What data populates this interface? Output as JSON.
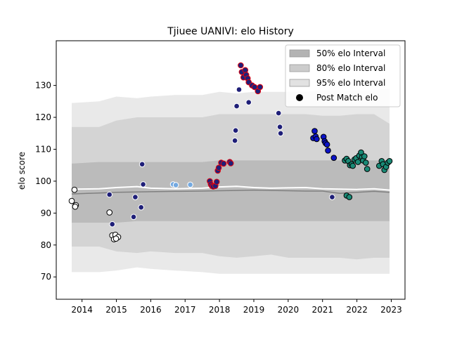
{
  "chart_data": {
    "type": "scatter",
    "title": "Tjiuee UANIVI: elo History",
    "xlabel": "",
    "ylabel": "elo score",
    "xlim": [
      2013.25,
      2023.4
    ],
    "ylim": [
      63.0,
      144.0
    ],
    "x_ticks": [
      2014,
      2015,
      2016,
      2017,
      2018,
      2019,
      2020,
      2021,
      2022,
      2023
    ],
    "y_ticks": [
      70,
      80,
      90,
      100,
      110,
      120,
      130
    ],
    "grid": false,
    "legend_position": "upper right",
    "legend": [
      {
        "label": "50% elo Interval",
        "kind": "band",
        "color": "#b3b3b3"
      },
      {
        "label": "80% elo Interval",
        "kind": "band",
        "color": "#cccccc"
      },
      {
        "label": "95% elo Interval",
        "kind": "band",
        "color": "#e2e2e2"
      },
      {
        "label": "Post Match elo",
        "kind": "marker",
        "color": "#000000"
      }
    ],
    "colors": {
      "band_50": "#b3b3b3",
      "band_80": "#cccccc",
      "band_95": "#e2e2e2",
      "median_line": "#ffffff",
      "mean_line": "#808080",
      "white": "#ffffff",
      "navy": "#1f1f78",
      "red_edge": "#e3000b",
      "light_blue": "#74a9e0",
      "blue": "#0a12c8",
      "teal": "#1a8a76"
    },
    "interval_bands": {
      "x": [
        2013.7,
        2014.5,
        2015.0,
        2015.6,
        2016.0,
        2016.7,
        2017.5,
        2018.0,
        2018.5,
        2019.0,
        2019.5,
        2020.0,
        2020.5,
        2021.0,
        2021.5,
        2022.0,
        2022.5,
        2022.95
      ],
      "p95_low": [
        71.5,
        71.5,
        72.0,
        73.0,
        72.5,
        72.0,
        71.5,
        71.0,
        71.0,
        71.0,
        71.0,
        71.0,
        71.0,
        71.0,
        71.0,
        71.0,
        71.0,
        71.0
      ],
      "p95_high": [
        124.5,
        125.0,
        126.5,
        126.0,
        126.5,
        127.0,
        127.0,
        128.0,
        127.5,
        128.0,
        128.0,
        128.0,
        128.0,
        128.5,
        128.5,
        128.5,
        128.5,
        129.0
      ],
      "p80_low": [
        79.5,
        79.5,
        78.0,
        77.5,
        78.0,
        77.5,
        77.5,
        76.5,
        76.0,
        76.5,
        77.0,
        76.0,
        76.0,
        76.0,
        76.0,
        75.5,
        76.0,
        76.0
      ],
      "p80_high": [
        117.0,
        117.0,
        119.0,
        120.0,
        120.0,
        120.0,
        120.0,
        121.0,
        121.0,
        121.0,
        121.0,
        121.0,
        121.0,
        120.5,
        120.5,
        121.0,
        121.0,
        118.0
      ],
      "p50_low": [
        87.0,
        87.0,
        87.0,
        87.5,
        87.5,
        87.5,
        87.5,
        87.5,
        87.5,
        87.5,
        87.5,
        87.5,
        87.5,
        87.5,
        87.5,
        87.5,
        87.5,
        87.5
      ],
      "p50_high": [
        105.5,
        106.0,
        106.0,
        106.0,
        106.0,
        106.0,
        106.0,
        106.5,
        106.5,
        106.5,
        106.5,
        106.5,
        106.5,
        106.5,
        106.5,
        106.5,
        106.5,
        106.5
      ],
      "median": [
        97.5,
        97.6,
        98.0,
        98.3,
        97.8,
        97.6,
        97.8,
        98.2,
        98.4,
        98.0,
        97.8,
        97.9,
        98.0,
        97.6,
        97.5,
        97.4,
        97.6,
        97.2
      ],
      "mean": [
        96.0,
        96.3,
        96.5,
        96.6,
        96.7,
        96.8,
        96.9,
        97.0,
        97.1,
        97.2,
        97.1,
        97.0,
        96.9,
        96.9,
        96.2,
        96.5,
        96.8,
        96.5
      ]
    },
    "series": [
      {
        "face": "#ffffff",
        "edge": "#000000",
        "points": [
          [
            2013.7,
            93.8
          ],
          [
            2013.78,
            97.3
          ],
          [
            2013.82,
            92.5
          ],
          [
            2013.8,
            92.0
          ],
          [
            2014.8,
            90.2
          ],
          [
            2014.88,
            83.0
          ],
          [
            2014.93,
            81.8
          ],
          [
            2014.97,
            83.2
          ],
          [
            2015.05,
            82.5
          ],
          [
            2014.99,
            82.0
          ]
        ]
      },
      {
        "face": "#1f1f78",
        "edge": "#ffffff",
        "points": [
          [
            2014.8,
            95.8
          ],
          [
            2014.88,
            86.5
          ],
          [
            2015.55,
            95.0
          ],
          [
            2015.5,
            88.8
          ],
          [
            2015.72,
            91.8
          ],
          [
            2015.75,
            105.3
          ],
          [
            2015.78,
            99.0
          ],
          [
            2018.45,
            112.7
          ],
          [
            2018.47,
            115.9
          ],
          [
            2018.5,
            123.5
          ],
          [
            2018.57,
            128.7
          ],
          [
            2018.85,
            124.7
          ],
          [
            2019.72,
            121.3
          ],
          [
            2019.76,
            117.0
          ],
          [
            2019.78,
            115.0
          ],
          [
            2021.28,
            95.0
          ]
        ]
      },
      {
        "face": "#74a9e0",
        "edge": "#ffffff",
        "points": [
          [
            2016.65,
            99.0
          ],
          [
            2016.73,
            98.8
          ],
          [
            2017.15,
            98.9
          ]
        ]
      },
      {
        "face": "#1f1f78",
        "edge": "#e3000b",
        "points": [
          [
            2017.72,
            100.0
          ],
          [
            2017.75,
            99.0
          ],
          [
            2017.78,
            98.5
          ],
          [
            2017.82,
            98.3
          ],
          [
            2017.88,
            98.5
          ],
          [
            2017.92,
            99.8
          ],
          [
            2017.95,
            103.3
          ],
          [
            2017.98,
            104.2
          ],
          [
            2018.05,
            105.8
          ],
          [
            2018.12,
            105.5
          ],
          [
            2018.3,
            106.0
          ],
          [
            2018.33,
            105.6
          ],
          [
            2018.62,
            136.3
          ],
          [
            2018.65,
            134.2
          ],
          [
            2018.7,
            132.5
          ],
          [
            2018.75,
            134.8
          ],
          [
            2018.78,
            133.3
          ],
          [
            2018.82,
            132.2
          ],
          [
            2018.85,
            131.0
          ],
          [
            2018.95,
            130.0
          ],
          [
            2019.02,
            129.5
          ],
          [
            2019.12,
            128.2
          ],
          [
            2019.18,
            129.5
          ]
        ]
      },
      {
        "face": "#0a12c8",
        "edge": "#000000",
        "points": [
          [
            2020.73,
            113.5
          ],
          [
            2020.77,
            115.7
          ],
          [
            2020.8,
            114.0
          ],
          [
            2020.83,
            113.2
          ],
          [
            2021.03,
            113.9
          ],
          [
            2021.06,
            112.5
          ],
          [
            2021.09,
            111.9
          ],
          [
            2021.13,
            111.5
          ],
          [
            2021.16,
            109.6
          ],
          [
            2021.33,
            107.3
          ]
        ]
      },
      {
        "face": "#1a8a76",
        "edge": "#000000",
        "points": [
          [
            2021.65,
            106.5
          ],
          [
            2021.7,
            107.0
          ],
          [
            2021.75,
            106.3
          ],
          [
            2021.8,
            105.0
          ],
          [
            2021.85,
            105.3
          ],
          [
            2021.88,
            104.8
          ],
          [
            2021.93,
            106.8
          ],
          [
            2021.98,
            107.2
          ],
          [
            2022.03,
            106.0
          ],
          [
            2022.07,
            108.0
          ],
          [
            2022.12,
            109.0
          ],
          [
            2022.15,
            107.5
          ],
          [
            2022.18,
            106.5
          ],
          [
            2022.22,
            107.8
          ],
          [
            2022.26,
            105.8
          ],
          [
            2022.3,
            103.8
          ],
          [
            2022.65,
            104.8
          ],
          [
            2022.72,
            106.3
          ],
          [
            2022.76,
            105.3
          ],
          [
            2022.8,
            103.5
          ],
          [
            2022.85,
            104.5
          ],
          [
            2022.9,
            105.8
          ],
          [
            2022.95,
            106.3
          ],
          [
            2021.7,
            95.5
          ],
          [
            2021.78,
            95.0
          ]
        ]
      }
    ]
  }
}
